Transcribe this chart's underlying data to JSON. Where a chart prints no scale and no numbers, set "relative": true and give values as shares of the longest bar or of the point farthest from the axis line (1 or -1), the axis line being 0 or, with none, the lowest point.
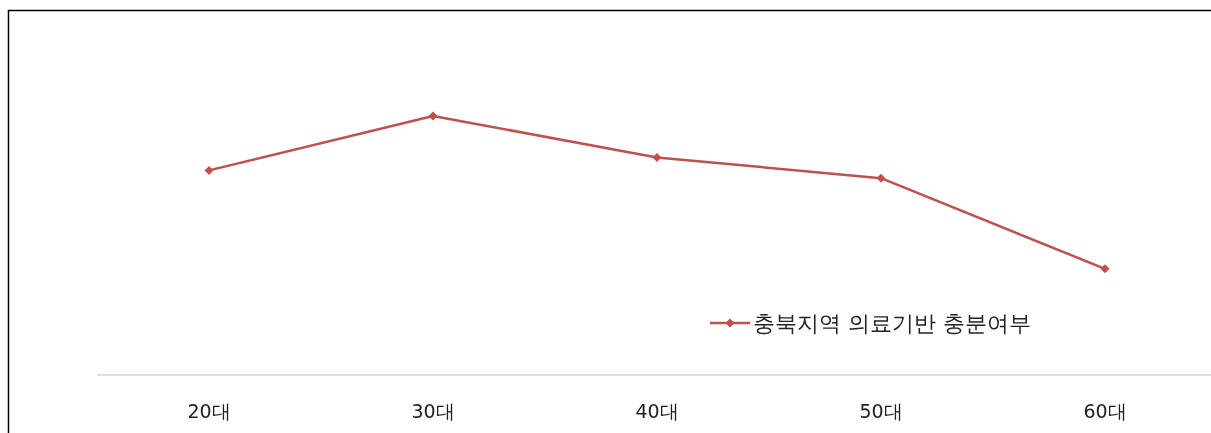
{
  "chart_data": {
    "type": "line",
    "relative": true,
    "categories": [
      "20대",
      "30대",
      "40대",
      "50대",
      "60대"
    ],
    "series": [
      {
        "name": "충북지역 의료기반 충분여부",
        "color": "#c0504d",
        "values": [
          0.79,
          1,
          0.84,
          0.76,
          0.41
        ]
      }
    ],
    "marker": "diamond",
    "legend": "bottom right"
  }
}
